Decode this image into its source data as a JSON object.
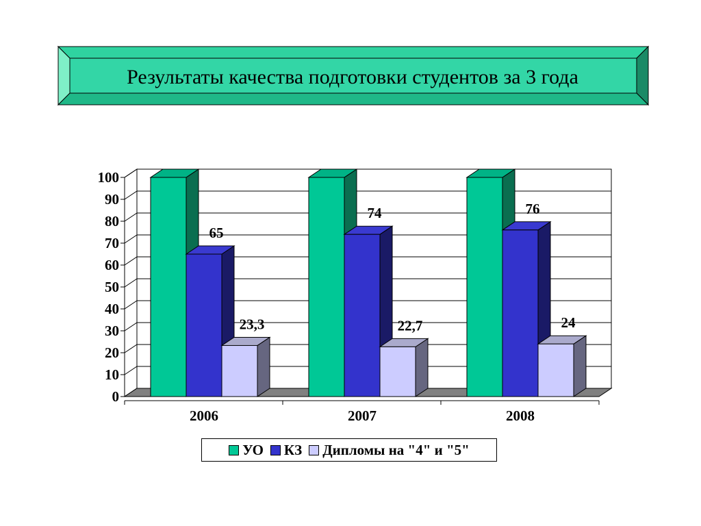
{
  "title": "Результаты качества подготовки студентов за  3 года",
  "colors": {
    "title_face": "#33d6a6",
    "title_light": "#7ff0c8",
    "title_dark": "#1a8a66",
    "title_border": "#000000",
    "series": [
      "#00c896",
      "#3333cc",
      "#ccccff"
    ],
    "series_side": [
      "#0a6e50",
      "#1a1a66",
      "#666680"
    ],
    "series_top": [
      "#00b386",
      "#3a3ad0",
      "#aaaacc"
    ],
    "floor": "#808080"
  },
  "chart_data": {
    "type": "bar",
    "categories": [
      "2006",
      "2007",
      "2008"
    ],
    "series": [
      {
        "name": "УО",
        "values": [
          100,
          100,
          100
        ],
        "labels": [
          "",
          "",
          ""
        ]
      },
      {
        "name": "КЗ",
        "values": [
          65,
          74,
          76
        ],
        "labels": [
          "65",
          "74",
          "76"
        ]
      },
      {
        "name": "Дипломы на \"4\" и \"5\"",
        "values": [
          23.3,
          22.7,
          24
        ],
        "labels": [
          "23,3",
          "22,7",
          "24"
        ]
      }
    ],
    "yticks": [
      "0",
      "10",
      "20",
      "30",
      "40",
      "50",
      "60",
      "70",
      "80",
      "90",
      "100"
    ],
    "ylim": [
      0,
      100
    ],
    "grid": true,
    "legend_position": "bottom"
  }
}
